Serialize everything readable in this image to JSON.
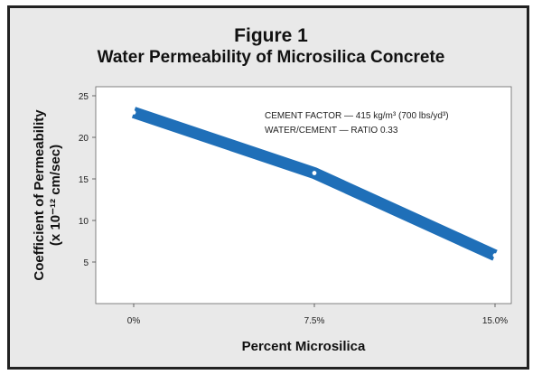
{
  "title": "Figure 1",
  "subtitle": "Water Permeability of Microsilica Concrete",
  "chart_data": {
    "type": "line",
    "title": "Figure 1",
    "subtitle": "Water Permeability of Microsilica Concrete",
    "xlabel": "Percent Microsilica",
    "ylabel_line1": "Coefficient of Permeability",
    "ylabel_line2": "(x 10⁻¹² cm/sec)",
    "categories": [
      "0%",
      "7.5%",
      "15.0%"
    ],
    "values": [
      23,
      15.7,
      5.8
    ],
    "yticks": [
      5,
      10,
      15,
      20,
      25
    ],
    "ylim": [
      0,
      26
    ],
    "grid": false,
    "annotations": [
      "CEMENT FACTOR — 415 kg/m³ (700 lbs/yd³)",
      "WATER/CEMENT — RATIO 0.33"
    ],
    "colors": {
      "band": "#1f6fb8",
      "marker": "#ffffff",
      "plot_bg": "#ffffff",
      "panel_bg": "#e9e9e9",
      "frame": "#222222"
    }
  }
}
